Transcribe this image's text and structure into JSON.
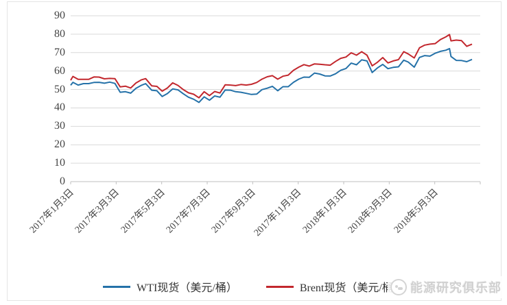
{
  "chart_data": {
    "type": "line",
    "title": "",
    "xlabel": "",
    "ylabel": "",
    "ylim": [
      0,
      90
    ],
    "y_ticks": [
      90,
      80,
      70,
      60,
      50,
      40,
      30,
      20,
      10,
      0
    ],
    "x_axis_range": [
      "2017-01-03",
      "2018-07-03"
    ],
    "x_tick_labels": [
      "2017年1月3日",
      "2017年3月3日",
      "2017年5月3日",
      "2017年7月3日",
      "2017年9月3日",
      "2017年11月3日",
      "2018年1月3日",
      "2018年3月3日",
      "2018年5月3日"
    ],
    "grid": "horizontal",
    "legend_position": "bottom",
    "x": [
      "2017-01-03",
      "2017-01-06",
      "2017-01-13",
      "2017-01-20",
      "2017-01-27",
      "2017-02-03",
      "2017-02-10",
      "2017-02-17",
      "2017-02-24",
      "2017-03-03",
      "2017-03-10",
      "2017-03-17",
      "2017-03-24",
      "2017-03-31",
      "2017-04-07",
      "2017-04-13",
      "2017-04-21",
      "2017-04-28",
      "2017-05-05",
      "2017-05-12",
      "2017-05-19",
      "2017-05-26",
      "2017-06-02",
      "2017-06-09",
      "2017-06-16",
      "2017-06-23",
      "2017-06-30",
      "2017-07-07",
      "2017-07-14",
      "2017-07-21",
      "2017-07-28",
      "2017-08-04",
      "2017-08-11",
      "2017-08-18",
      "2017-08-25",
      "2017-09-01",
      "2017-09-08",
      "2017-09-15",
      "2017-09-22",
      "2017-09-29",
      "2017-10-06",
      "2017-10-13",
      "2017-10-20",
      "2017-10-27",
      "2017-11-03",
      "2017-11-10",
      "2017-11-17",
      "2017-11-24",
      "2017-12-01",
      "2017-12-08",
      "2017-12-15",
      "2017-12-22",
      "2017-12-29",
      "2018-01-05",
      "2018-01-12",
      "2018-01-19",
      "2018-01-26",
      "2018-02-02",
      "2018-02-09",
      "2018-02-16",
      "2018-02-23",
      "2018-03-02",
      "2018-03-09",
      "2018-03-16",
      "2018-03-23",
      "2018-03-29",
      "2018-04-06",
      "2018-04-13",
      "2018-04-20",
      "2018-04-27",
      "2018-05-04",
      "2018-05-11",
      "2018-05-18",
      "2018-05-23",
      "2018-05-25",
      "2018-06-01",
      "2018-06-08",
      "2018-06-15",
      "2018-06-22"
    ],
    "series": [
      {
        "name": "WTI现货（美元/桶）",
        "color": "#2471A8",
        "values": [
          52.3,
          53.9,
          52.4,
          53.2,
          53.2,
          53.8,
          53.9,
          53.4,
          54.0,
          53.3,
          48.5,
          48.8,
          48.0,
          50.6,
          52.2,
          53.2,
          49.6,
          49.3,
          46.2,
          47.8,
          50.3,
          49.8,
          47.7,
          45.8,
          44.7,
          43.0,
          46.0,
          44.2,
          46.5,
          45.8,
          49.7,
          49.6,
          48.8,
          48.5,
          47.9,
          47.3,
          47.5,
          49.9,
          50.7,
          51.7,
          49.3,
          51.5,
          51.5,
          53.9,
          55.6,
          56.7,
          56.6,
          58.9,
          58.4,
          57.4,
          57.3,
          58.5,
          60.4,
          61.4,
          64.3,
          63.4,
          66.1,
          65.5,
          59.2,
          61.7,
          63.6,
          61.3,
          62.0,
          62.3,
          65.9,
          64.9,
          62.1,
          67.4,
          68.4,
          68.1,
          69.7,
          70.7,
          71.3,
          72.2,
          67.9,
          65.8,
          65.7,
          65.1,
          66.3
        ]
      },
      {
        "name": "Brent现货（美元/桶）",
        "color": "#C2272D",
        "values": [
          55.0,
          57.1,
          55.5,
          55.5,
          55.5,
          56.8,
          56.7,
          55.8,
          56.0,
          55.9,
          51.4,
          51.8,
          50.8,
          53.5,
          55.2,
          55.9,
          52.0,
          51.7,
          49.1,
          50.8,
          53.6,
          52.2,
          50.0,
          48.2,
          47.4,
          45.5,
          48.8,
          46.7,
          48.9,
          48.1,
          52.5,
          52.4,
          52.1,
          52.7,
          52.4,
          52.8,
          53.8,
          55.6,
          56.9,
          57.5,
          55.6,
          57.2,
          57.8,
          60.4,
          62.1,
          63.5,
          62.7,
          63.9,
          63.7,
          63.4,
          63.2,
          65.2,
          66.9,
          67.6,
          69.9,
          68.6,
          70.5,
          68.6,
          62.8,
          64.8,
          67.3,
          64.4,
          65.5,
          66.2,
          70.5,
          69.3,
          67.1,
          72.6,
          74.1,
          74.6,
          74.9,
          77.1,
          78.5,
          79.8,
          76.4,
          76.8,
          76.5,
          73.4,
          74.6
        ]
      }
    ],
    "colors": {
      "gridline": "#d9d9d9",
      "axis_line": "#bfbfbf",
      "tick_mark": "#bfbfbf",
      "tick_label": "#444444"
    }
  },
  "watermark": {
    "text": "能源研究俱乐部",
    "logo": "energy-club-logo"
  }
}
